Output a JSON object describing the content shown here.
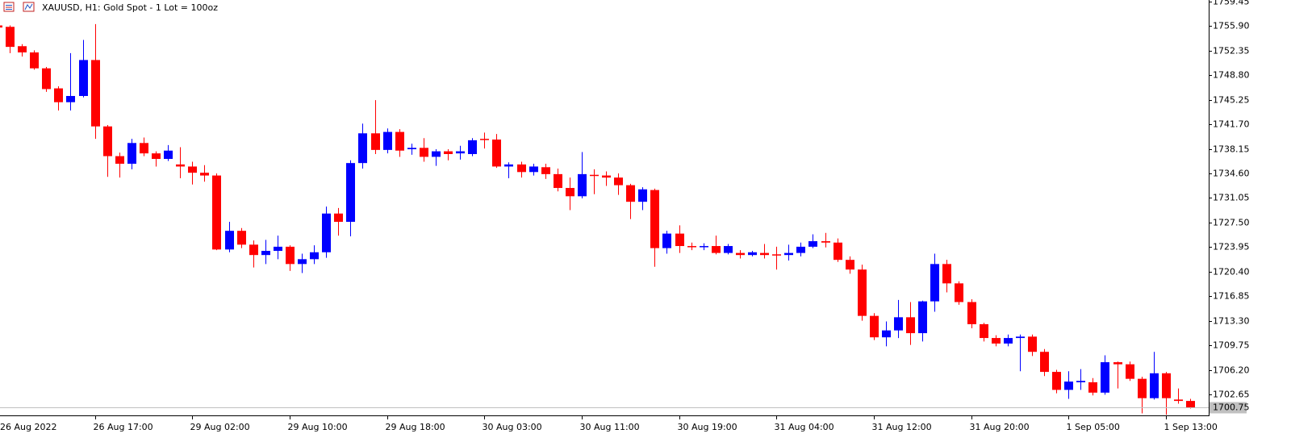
{
  "chart_data": {
    "type": "candlestick",
    "title": "XAUUSD, H1:  Gold  Spot - 1 Lot = 100oz",
    "categories": [
      "26 Aug 2022",
      null,
      null,
      null,
      null,
      null,
      null,
      null,
      "26 Aug 17:00",
      null,
      null,
      null,
      null,
      null,
      null,
      null,
      "29 Aug 02:00",
      null,
      null,
      null,
      null,
      null,
      null,
      null,
      "29 Aug 10:00",
      null,
      null,
      null,
      null,
      null,
      null,
      null,
      "29 Aug 18:00",
      null,
      null,
      null,
      null,
      null,
      null,
      null,
      "30 Aug 03:00",
      null,
      null,
      null,
      null,
      null,
      null,
      null,
      "30 Aug 11:00",
      null,
      null,
      null,
      null,
      null,
      null,
      null,
      "30 Aug 19:00",
      null,
      null,
      null,
      null,
      null,
      null,
      null,
      "31 Aug 04:00",
      null,
      null,
      null,
      null,
      null,
      null,
      null,
      "31 Aug 12:00",
      null,
      null,
      null,
      null,
      null,
      null,
      null,
      "31 Aug 20:00",
      null,
      null,
      null,
      null,
      null,
      null,
      null,
      "1 Sep 05:00",
      null,
      null,
      null,
      null,
      null,
      null,
      null,
      "1 Sep 13:00",
      null,
      null
    ],
    "open": [
      1756.0,
      1755.8,
      1753.0,
      1752.1,
      1749.8,
      1746.9,
      1744.9,
      1745.8,
      1751.0,
      1741.4,
      1737.1,
      1736.0,
      1739.0,
      1737.5,
      1736.7,
      1735.9,
      1735.6,
      1734.7,
      1734.3,
      1723.6,
      1726.3,
      1724.3,
      1722.8,
      1723.4,
      1724.0,
      1721.5,
      1722.2,
      1723.2,
      1728.8,
      1727.6,
      1736.1,
      1740.4,
      1738.0,
      1740.6,
      1738.1,
      1738.3,
      1737.0,
      1737.8,
      1737.5,
      1737.4,
      1739.6,
      1739.5,
      1735.6,
      1735.9,
      1734.8,
      1735.5,
      1734.5,
      1732.5,
      1731.3,
      1734.4,
      1734.3,
      1734.0,
      1732.9,
      1730.5,
      1732.2,
      1723.8,
      1725.9,
      1724.1,
      1724.0,
      1724.1,
      1723.1,
      1723.1,
      1722.8,
      1723.1,
      1722.9,
      1722.8,
      1723.1,
      1724.0,
      1724.8,
      1724.6,
      1722.1,
      1720.7,
      1714.0,
      1710.9,
      1711.9,
      1713.8,
      1711.5,
      1716.1,
      1721.5,
      1718.7,
      1716.0,
      1712.8,
      1710.8,
      1710.0,
      1710.8,
      1711.0,
      1708.8,
      1705.9,
      1703.3,
      1704.4,
      1704.4,
      1702.9,
      1707.3,
      1707.0,
      1704.9,
      1702.1,
      1705.7,
      1701.9,
      1701.7
    ],
    "high": [
      1756.2,
      1756.0,
      1753.3,
      1752.4,
      1750.0,
      1747.2,
      1752.0,
      1753.9,
      1756.2,
      1741.6,
      1737.6,
      1739.6,
      1739.8,
      1737.8,
      1738.7,
      1738.4,
      1736.3,
      1735.8,
      1734.6,
      1727.6,
      1726.7,
      1724.9,
      1725.0,
      1725.6,
      1724.2,
      1723.0,
      1724.2,
      1729.8,
      1729.6,
      1736.5,
      1741.8,
      1745.2,
      1741.1,
      1741.0,
      1738.9,
      1739.7,
      1738.1,
      1738.1,
      1738.6,
      1739.7,
      1740.5,
      1740.3,
      1736.2,
      1736.3,
      1736.0,
      1736.0,
      1735.3,
      1734.0,
      1737.7,
      1735.2,
      1734.9,
      1734.6,
      1733.1,
      1732.6,
      1732.4,
      1726.3,
      1727.1,
      1724.6,
      1724.5,
      1725.6,
      1724.4,
      1723.5,
      1723.4,
      1724.4,
      1724.0,
      1724.3,
      1724.6,
      1725.8,
      1726.0,
      1725.2,
      1722.6,
      1721.4,
      1714.4,
      1713.2,
      1716.3,
      1716.0,
      1716.2,
      1723.0,
      1722.1,
      1719.0,
      1716.4,
      1713.0,
      1711.2,
      1711.3,
      1711.3,
      1711.3,
      1709.2,
      1706.2,
      1706.0,
      1706.3,
      1705.0,
      1708.3,
      1707.4,
      1707.4,
      1705.2,
      1708.8,
      1705.9,
      1703.5,
      1702.0
    ],
    "low": [
      1755.5,
      1752.0,
      1751.5,
      1749.6,
      1746.4,
      1743.7,
      1743.7,
      1745.6,
      1739.6,
      1734.1,
      1734.0,
      1735.2,
      1737.1,
      1735.6,
      1736.4,
      1733.9,
      1733.0,
      1733.4,
      1723.5,
      1723.2,
      1723.8,
      1721.0,
      1721.5,
      1722.2,
      1720.5,
      1720.2,
      1721.5,
      1722.4,
      1725.6,
      1725.5,
      1735.3,
      1737.4,
      1737.5,
      1737.0,
      1737.3,
      1736.3,
      1735.7,
      1736.5,
      1736.6,
      1737.1,
      1738.2,
      1735.4,
      1733.9,
      1734.0,
      1734.3,
      1733.8,
      1732.0,
      1729.3,
      1731.0,
      1731.6,
      1732.8,
      1731.5,
      1728.0,
      1729.3,
      1721.1,
      1723.0,
      1723.1,
      1723.5,
      1723.5,
      1722.9,
      1722.9,
      1722.3,
      1722.6,
      1722.3,
      1720.7,
      1722.0,
      1722.6,
      1723.8,
      1723.9,
      1721.8,
      1720.1,
      1713.3,
      1710.5,
      1709.6,
      1710.8,
      1709.8,
      1710.3,
      1714.6,
      1717.4,
      1715.6,
      1712.2,
      1710.3,
      1709.6,
      1709.6,
      1706.0,
      1708.2,
      1705.3,
      1702.8,
      1702.0,
      1703.3,
      1702.5,
      1702.6,
      1703.5,
      1704.6,
      1699.9,
      1701.9,
      1699.7,
      1701.3,
      1700.6
    ],
    "close": [
      1755.7,
      1752.9,
      1752.1,
      1749.8,
      1746.8,
      1744.9,
      1745.8,
      1751.0,
      1741.4,
      1737.1,
      1736.0,
      1739.0,
      1737.5,
      1736.7,
      1737.9,
      1735.6,
      1734.7,
      1734.3,
      1723.6,
      1726.3,
      1724.3,
      1722.8,
      1723.4,
      1724.0,
      1721.5,
      1722.2,
      1723.2,
      1728.8,
      1727.6,
      1736.1,
      1740.4,
      1738.0,
      1740.6,
      1737.9,
      1738.3,
      1737.0,
      1737.8,
      1737.4,
      1737.8,
      1739.4,
      1739.5,
      1735.6,
      1735.9,
      1734.8,
      1735.6,
      1734.5,
      1732.5,
      1731.3,
      1734.5,
      1734.3,
      1734.0,
      1732.9,
      1730.5,
      1732.3,
      1723.8,
      1725.9,
      1724.1,
      1724.0,
      1724.1,
      1723.1,
      1724.1,
      1722.8,
      1723.2,
      1722.8,
      1722.8,
      1723.1,
      1724.0,
      1724.8,
      1724.6,
      1722.1,
      1720.7,
      1714.0,
      1710.9,
      1711.9,
      1713.8,
      1711.5,
      1716.1,
      1721.5,
      1718.7,
      1716.0,
      1712.8,
      1710.8,
      1710.0,
      1710.8,
      1711.0,
      1708.8,
      1705.9,
      1703.3,
      1704.5,
      1704.6,
      1702.9,
      1707.3,
      1707.0,
      1704.9,
      1702.1,
      1705.7,
      1702.1,
      1701.7,
      1700.75
    ],
    "up_color": "#0000ff",
    "down_color": "#ff0000",
    "current_price": 1700.75,
    "ylim": [
      1699.61,
      1759.68
    ],
    "yticks": [
      1759.45,
      {
        "value": 1755.9,
        "label": "1755.90"
      },
      1752.35,
      {
        "value": 1748.8,
        "label": "1748.80"
      },
      1745.25,
      {
        "value": 1741.7,
        "label": "1741.70"
      },
      1738.15,
      {
        "value": 1734.6,
        "label": "1734.60"
      },
      1731.05,
      {
        "value": 1727.5,
        "label": "1727.50"
      },
      1723.95,
      {
        "value": 1720.4,
        "label": "1720.40"
      },
      1716.85,
      {
        "value": 1713.3,
        "label": "1713.30"
      },
      1709.75,
      {
        "value": 1706.2,
        "label": "1706.20"
      },
      1702.65
    ]
  }
}
